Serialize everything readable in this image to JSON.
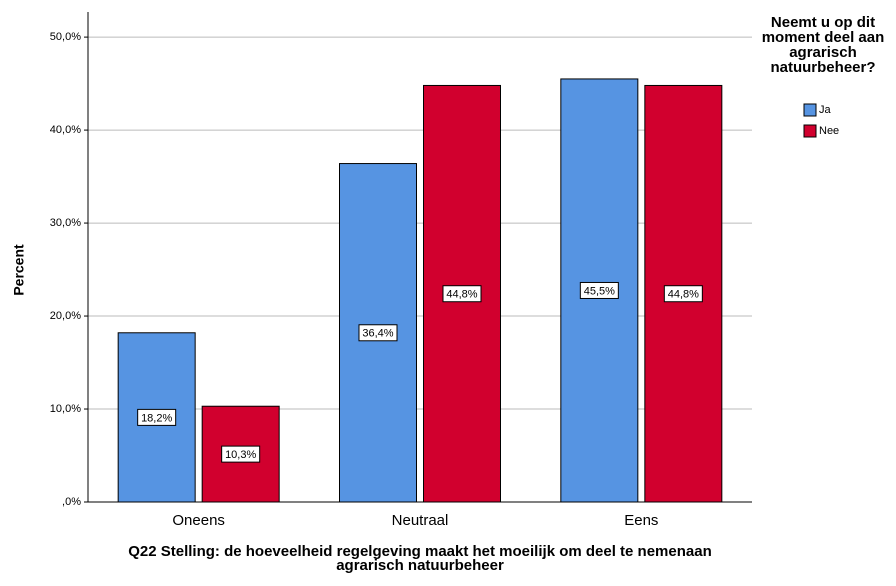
{
  "chart_data": {
    "type": "bar",
    "x_label": "Q22 Stelling: de hoeveelheid regelgeving maakt het moeilijk om deel te nemenaan agrarisch natuurbeheer",
    "y_label": "Percent",
    "legend_title": "Neemt u op dit moment deel aan agrarisch natuurbeheer?",
    "legend_position": "upper right",
    "categories": [
      "Oneens",
      "Neutraal",
      "Eens"
    ],
    "series": [
      {
        "name": "Ja",
        "color": "#5694e2",
        "values": [
          18.2,
          36.4,
          45.5
        ],
        "value_labels": [
          "18,2%",
          "36,4%",
          "45,5%"
        ]
      },
      {
        "name": "Nee",
        "color": "#d1002e",
        "values": [
          10.3,
          44.8,
          44.8
        ],
        "value_labels": [
          "10,3%",
          "44,8%",
          "44,8%"
        ]
      }
    ],
    "ylim": [
      0,
      52.7
    ],
    "yticks": [
      {
        "value": 0,
        "label": ",0%"
      },
      {
        "value": 10,
        "label": "10,0%"
      },
      {
        "value": 20,
        "label": "20,0%"
      },
      {
        "value": 30,
        "label": "30,0%"
      },
      {
        "value": 40,
        "label": "40,0%"
      },
      {
        "value": 50,
        "label": "50,0%"
      }
    ],
    "grid": true
  }
}
